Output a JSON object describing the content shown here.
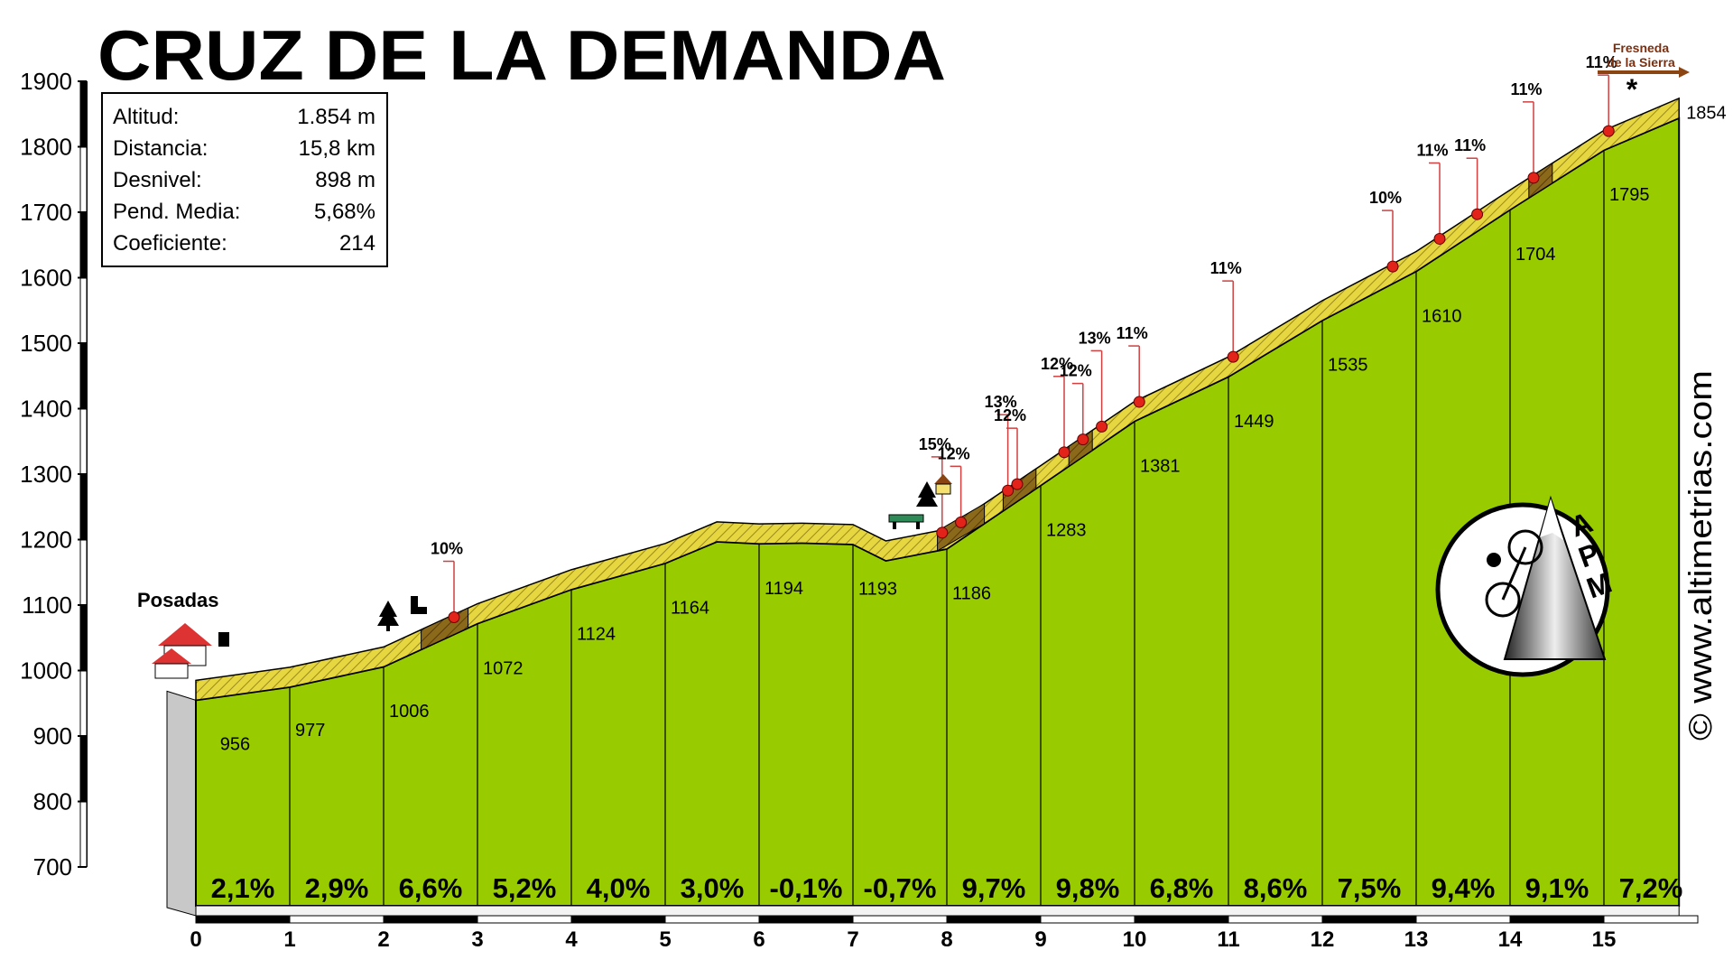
{
  "title": "CRUZ DE LA DEMANDA",
  "watermark": "© www.altimetrias.com",
  "logo_letters": [
    "A",
    "P",
    "M"
  ],
  "stats": [
    {
      "label": "Altitud:",
      "value": "1.854 m"
    },
    {
      "label": "Distancia:",
      "value": "15,8 km"
    },
    {
      "label": "Desnivel:",
      "value": "898 m"
    },
    {
      "label": "Pend. Media:",
      "value": "5,68%"
    },
    {
      "label": "Coeficiente:",
      "value": "214"
    }
  ],
  "start_label": "Posadas",
  "end_sign": "Fresneda de la Sierra",
  "colors": {
    "profile_fill": "#99cc00",
    "road_band": "#e6d640",
    "steep_band": "#7a6a1a",
    "marker": "#e2231a",
    "stem": "#d04040",
    "sign": "#8b4513"
  },
  "chart_data": {
    "type": "area",
    "title": "CRUZ DE LA DEMANDA",
    "xlabel": "",
    "ylabel": "",
    "xlim": [
      0,
      15.8
    ],
    "ylim": [
      700,
      1900
    ],
    "x_ticks": [
      "0",
      "1",
      "2",
      "3",
      "4",
      "5",
      "6",
      "7",
      "8",
      "9",
      "10",
      "11",
      "12",
      "13",
      "14",
      "15"
    ],
    "y_ticks": [
      "700",
      "800",
      "900",
      "1000",
      "1100",
      "1200",
      "1300",
      "1400",
      "1500",
      "1600",
      "1700",
      "1800",
      "1900"
    ],
    "km_altitudes": [
      {
        "x": 0.2,
        "label": "956"
      },
      {
        "x": 1.0,
        "label": "977"
      },
      {
        "x": 2.0,
        "label": "1006"
      },
      {
        "x": 3.0,
        "label": "1072"
      },
      {
        "x": 4.0,
        "label": "1124"
      },
      {
        "x": 5.0,
        "label": "1164"
      },
      {
        "x": 6.0,
        "label": "1194"
      },
      {
        "x": 7.0,
        "label": "1193"
      },
      {
        "x": 8.0,
        "label": "1186"
      },
      {
        "x": 9.0,
        "label": "1283"
      },
      {
        "x": 10.0,
        "label": "1381"
      },
      {
        "x": 11.0,
        "label": "1449"
      },
      {
        "x": 12.0,
        "label": "1535"
      },
      {
        "x": 13.0,
        "label": "1610"
      },
      {
        "x": 14.0,
        "label": "1704"
      },
      {
        "x": 15.0,
        "label": "1795"
      },
      {
        "x": 15.8,
        "label": "1854"
      }
    ],
    "profile": [
      [
        0,
        985
      ],
      [
        1,
        1005
      ],
      [
        2,
        1036
      ],
      [
        3,
        1102
      ],
      [
        4,
        1154
      ],
      [
        5,
        1194
      ],
      [
        5.55,
        1227
      ],
      [
        6,
        1224
      ],
      [
        6.45,
        1225
      ],
      [
        7,
        1223
      ],
      [
        7.35,
        1198
      ],
      [
        8,
        1216
      ],
      [
        9,
        1313
      ],
      [
        10,
        1411
      ],
      [
        11,
        1479
      ],
      [
        12,
        1565
      ],
      [
        13,
        1640
      ],
      [
        14,
        1734
      ],
      [
        15,
        1825
      ],
      [
        15.8,
        1874
      ]
    ],
    "segment_gradients": [
      "2,1%",
      "2,9%",
      "6,6%",
      "5,2%",
      "4,0%",
      "3,0%",
      "-0,1%",
      "-0,7%",
      "9,7%",
      "9,8%",
      "6,8%",
      "8,6%",
      "7,5%",
      "9,4%",
      "9,1%",
      "7,2%"
    ],
    "max_gradients": [
      {
        "x": 2.75,
        "label": "10%"
      },
      {
        "x": 7.95,
        "label": "15%"
      },
      {
        "x": 8.15,
        "label": "12%"
      },
      {
        "x": 8.65,
        "label": "13%"
      },
      {
        "x": 8.75,
        "label": "12%"
      },
      {
        "x": 9.25,
        "label": "12%"
      },
      {
        "x": 9.45,
        "label": "12%"
      },
      {
        "x": 9.65,
        "label": "13%"
      },
      {
        "x": 10.05,
        "label": "11%"
      },
      {
        "x": 11.05,
        "label": "11%"
      },
      {
        "x": 12.75,
        "label": "10%"
      },
      {
        "x": 13.25,
        "label": "11%"
      },
      {
        "x": 13.65,
        "label": "11%"
      },
      {
        "x": 14.25,
        "label": "11%"
      },
      {
        "x": 15.05,
        "label": "11%"
      }
    ]
  }
}
